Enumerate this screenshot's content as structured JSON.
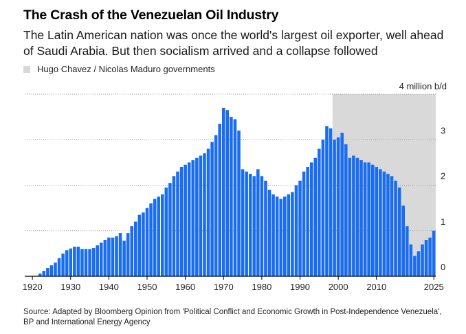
{
  "header": {
    "title": "The Crash of the Venezuelan Oil Industry",
    "subtitle": "The Latin American nation was once the world's largest oil exporter, well ahead of Saudi Arabia. But then socialism arrived and a collapse followed"
  },
  "legend": {
    "label": "Hugo Chavez / Nicolas Maduro governments",
    "color": "#d9d9d9"
  },
  "footer": {
    "source": "Source: Adapted by Bloomberg Opinion from 'Political Conflict and Economic Growth in Post-Independence Venezuela', BP and International Energy Agency"
  },
  "chart_data": {
    "type": "bar",
    "unit_label": "4 million b/d",
    "bar_color": "#1a6df0",
    "ylim": [
      0,
      4
    ],
    "y_ticks": [
      0,
      1,
      2,
      3
    ],
    "xlim": [
      1918,
      2025.5
    ],
    "x_ticks": [
      1920,
      1930,
      1940,
      1950,
      1960,
      1970,
      1980,
      1990,
      2000,
      2010,
      2025
    ],
    "shaded_period": {
      "label": "Hugo Chavez / Nicolas Maduro governments",
      "start": 1999,
      "end": 2025
    },
    "x": [
      1920,
      1921,
      1922,
      1923,
      1924,
      1925,
      1926,
      1927,
      1928,
      1929,
      1930,
      1931,
      1932,
      1933,
      1934,
      1935,
      1936,
      1937,
      1938,
      1939,
      1940,
      1941,
      1942,
      1943,
      1944,
      1945,
      1946,
      1947,
      1948,
      1949,
      1950,
      1951,
      1952,
      1953,
      1954,
      1955,
      1956,
      1957,
      1958,
      1959,
      1960,
      1961,
      1962,
      1963,
      1964,
      1965,
      1966,
      1967,
      1968,
      1969,
      1970,
      1971,
      1972,
      1973,
      1974,
      1975,
      1976,
      1977,
      1978,
      1979,
      1980,
      1981,
      1982,
      1983,
      1984,
      1985,
      1986,
      1987,
      1988,
      1989,
      1990,
      1991,
      1992,
      1993,
      1994,
      1995,
      1996,
      1997,
      1998,
      1999,
      2000,
      2001,
      2002,
      2003,
      2004,
      2005,
      2006,
      2007,
      2008,
      2009,
      2010,
      2011,
      2012,
      2013,
      2014,
      2015,
      2016,
      2017,
      2018,
      2019,
      2020,
      2021,
      2022,
      2023,
      2024,
      2025
    ],
    "values": [
      0.01,
      0.01,
      0.06,
      0.12,
      0.18,
      0.24,
      0.3,
      0.4,
      0.5,
      0.57,
      0.61,
      0.65,
      0.65,
      0.6,
      0.6,
      0.6,
      0.62,
      0.68,
      0.74,
      0.8,
      0.85,
      0.85,
      0.88,
      0.95,
      0.78,
      0.95,
      1.1,
      1.2,
      1.35,
      1.4,
      1.5,
      1.6,
      1.7,
      1.75,
      1.8,
      1.95,
      2.05,
      2.2,
      2.3,
      2.4,
      2.45,
      2.5,
      2.55,
      2.6,
      2.65,
      2.7,
      2.8,
      2.95,
      3.1,
      3.35,
      3.7,
      3.65,
      3.5,
      3.45,
      3.2,
      2.35,
      2.3,
      2.25,
      2.2,
      2.35,
      2.2,
      2.1,
      1.9,
      1.8,
      1.75,
      1.7,
      1.75,
      1.8,
      1.85,
      2.0,
      2.1,
      2.3,
      2.4,
      2.5,
      2.6,
      2.8,
      3.0,
      3.3,
      3.25,
      3.0,
      3.05,
      3.15,
      2.9,
      2.6,
      2.65,
      2.6,
      2.55,
      2.5,
      2.5,
      2.45,
      2.4,
      2.35,
      2.3,
      2.25,
      2.2,
      2.1,
      1.95,
      1.55,
      1.1,
      0.7,
      0.45,
      0.55,
      0.7,
      0.8,
      0.85,
      1.0
    ]
  }
}
